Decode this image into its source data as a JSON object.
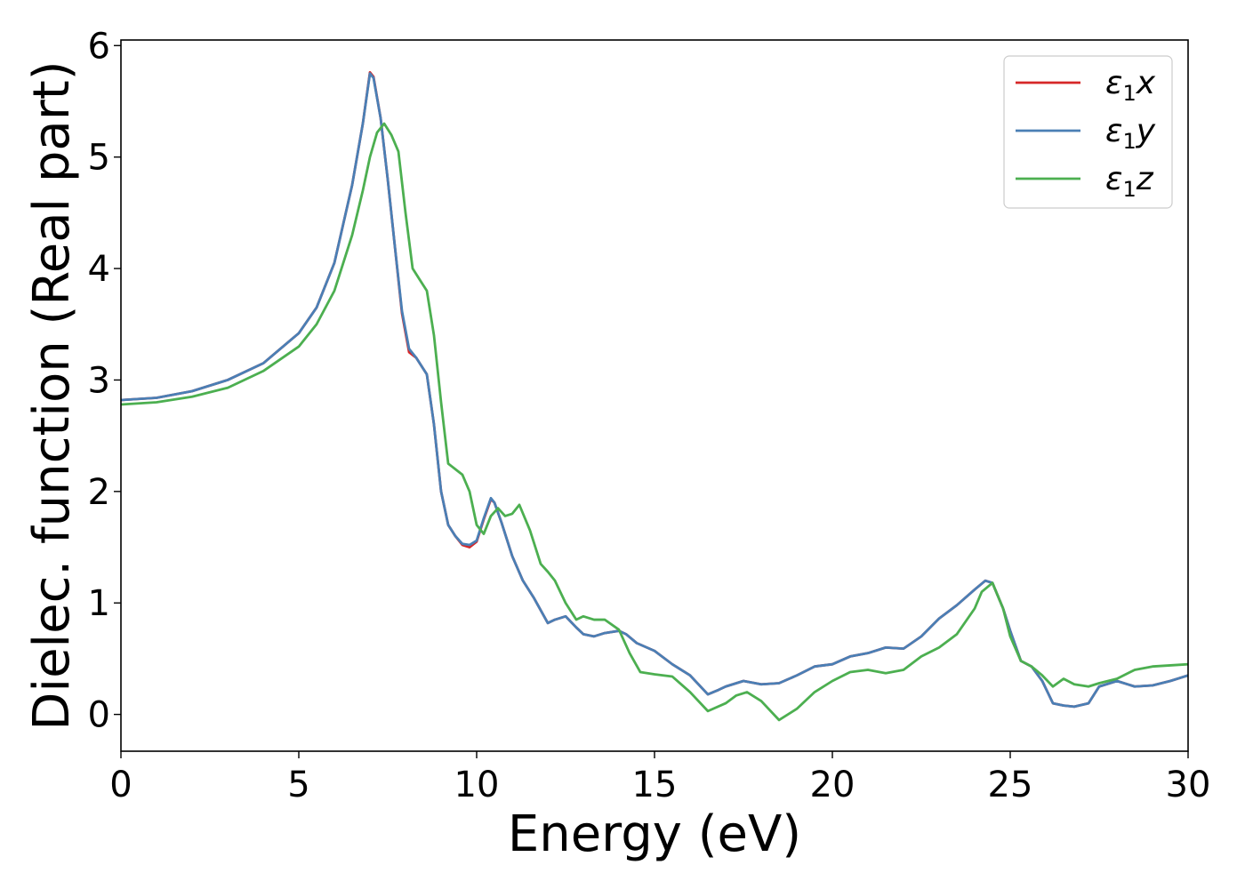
{
  "chart_data": {
    "type": "line",
    "title": "",
    "xlabel": "Energy (eV)",
    "ylabel": "Dielec. function (Real part)",
    "xlim": [
      0,
      30
    ],
    "ylim": [
      -0.33,
      6.05
    ],
    "xticks": [
      0,
      5,
      10,
      15,
      20,
      25,
      30
    ],
    "yticks": [
      0,
      1,
      2,
      3,
      4,
      5,
      6
    ],
    "grid": false,
    "legend_position": "top-right",
    "series": [
      {
        "name": "ε1x",
        "label_base": "ε",
        "label_sub": "1",
        "label_suffix": "x",
        "color": "#d62728",
        "x": [
          0,
          1,
          2,
          3,
          4,
          5,
          5.5,
          6,
          6.5,
          6.8,
          7.0,
          7.1,
          7.3,
          7.5,
          7.7,
          7.9,
          8.1,
          8.3,
          8.6,
          8.8,
          9.0,
          9.2,
          9.4,
          9.6,
          9.8,
          10.0,
          10.2,
          10.4,
          10.5,
          10.7,
          11.0,
          11.3,
          11.6,
          12.0,
          12.2,
          12.5,
          12.8,
          13.0,
          13.3,
          13.6,
          14.0,
          14.2,
          14.5,
          15.0,
          15.5,
          16.0,
          16.5,
          16.8,
          17.0,
          17.5,
          18.0,
          18.5,
          19.0,
          19.5,
          20.0,
          20.5,
          21.0,
          21.5,
          22.0,
          22.5,
          23.0,
          23.5,
          24.0,
          24.3,
          24.5,
          24.8,
          25.0,
          25.3,
          25.6,
          25.9,
          26.2,
          26.5,
          26.8,
          27.2,
          27.5,
          28.0,
          28.5,
          29.0,
          29.5,
          30.0
        ],
        "y": [
          2.82,
          2.84,
          2.9,
          3.0,
          3.15,
          3.42,
          3.65,
          4.05,
          4.75,
          5.3,
          5.76,
          5.72,
          5.35,
          4.8,
          4.2,
          3.6,
          3.25,
          3.2,
          3.05,
          2.6,
          2.0,
          1.7,
          1.6,
          1.52,
          1.5,
          1.55,
          1.75,
          1.93,
          1.9,
          1.72,
          1.42,
          1.2,
          1.05,
          0.82,
          0.85,
          0.88,
          0.78,
          0.72,
          0.7,
          0.73,
          0.75,
          0.72,
          0.64,
          0.57,
          0.45,
          0.35,
          0.18,
          0.22,
          0.25,
          0.3,
          0.27,
          0.28,
          0.35,
          0.43,
          0.45,
          0.52,
          0.55,
          0.6,
          0.59,
          0.7,
          0.86,
          0.98,
          1.12,
          1.2,
          1.18,
          0.95,
          0.75,
          0.48,
          0.43,
          0.3,
          0.1,
          0.08,
          0.07,
          0.1,
          0.25,
          0.3,
          0.25,
          0.26,
          0.3,
          0.35
        ]
      },
      {
        "name": "ε1y",
        "label_base": "ε",
        "label_sub": "1",
        "label_suffix": "y",
        "color": "#4a7fb5",
        "x": [
          0,
          1,
          2,
          3,
          4,
          5,
          5.5,
          6,
          6.5,
          6.8,
          7.0,
          7.1,
          7.3,
          7.5,
          7.7,
          7.9,
          8.1,
          8.3,
          8.6,
          8.8,
          9.0,
          9.2,
          9.4,
          9.6,
          9.8,
          10.0,
          10.2,
          10.4,
          10.5,
          10.7,
          11.0,
          11.3,
          11.6,
          12.0,
          12.2,
          12.5,
          12.8,
          13.0,
          13.3,
          13.6,
          14.0,
          14.2,
          14.5,
          15.0,
          15.5,
          16.0,
          16.5,
          16.8,
          17.0,
          17.5,
          18.0,
          18.5,
          19.0,
          19.5,
          20.0,
          20.5,
          21.0,
          21.5,
          22.0,
          22.5,
          23.0,
          23.5,
          24.0,
          24.3,
          24.5,
          24.8,
          25.0,
          25.3,
          25.6,
          25.9,
          26.2,
          26.5,
          26.8,
          27.2,
          27.5,
          28.0,
          28.5,
          29.0,
          29.5,
          30.0
        ],
        "y": [
          2.82,
          2.84,
          2.9,
          3.0,
          3.15,
          3.42,
          3.65,
          4.05,
          4.75,
          5.3,
          5.75,
          5.71,
          5.35,
          4.8,
          4.2,
          3.62,
          3.28,
          3.2,
          3.05,
          2.6,
          2.0,
          1.7,
          1.6,
          1.53,
          1.52,
          1.56,
          1.76,
          1.94,
          1.9,
          1.72,
          1.42,
          1.2,
          1.05,
          0.82,
          0.85,
          0.88,
          0.78,
          0.72,
          0.7,
          0.73,
          0.75,
          0.72,
          0.64,
          0.57,
          0.45,
          0.35,
          0.18,
          0.22,
          0.25,
          0.3,
          0.27,
          0.28,
          0.35,
          0.43,
          0.45,
          0.52,
          0.55,
          0.6,
          0.59,
          0.7,
          0.86,
          0.98,
          1.12,
          1.2,
          1.18,
          0.95,
          0.75,
          0.48,
          0.43,
          0.3,
          0.1,
          0.08,
          0.07,
          0.1,
          0.25,
          0.3,
          0.25,
          0.26,
          0.3,
          0.35
        ]
      },
      {
        "name": "ε1z",
        "label_base": "ε",
        "label_sub": "1",
        "label_suffix": "z",
        "color": "#4caf50",
        "x": [
          0,
          1,
          2,
          3,
          4,
          5,
          5.5,
          6,
          6.5,
          6.8,
          7.0,
          7.2,
          7.4,
          7.6,
          7.8,
          8.0,
          8.2,
          8.4,
          8.6,
          8.8,
          9.0,
          9.2,
          9.4,
          9.6,
          9.8,
          10.0,
          10.2,
          10.4,
          10.6,
          10.8,
          11.0,
          11.2,
          11.5,
          11.8,
          12.0,
          12.2,
          12.5,
          12.8,
          13.0,
          13.3,
          13.6,
          14.0,
          14.3,
          14.6,
          15.0,
          15.5,
          16.0,
          16.5,
          17.0,
          17.3,
          17.6,
          18.0,
          18.5,
          19.0,
          19.5,
          20.0,
          20.5,
          21.0,
          21.5,
          22.0,
          22.5,
          23.0,
          23.5,
          24.0,
          24.2,
          24.5,
          24.8,
          25.0,
          25.3,
          25.6,
          25.9,
          26.2,
          26.5,
          26.8,
          27.2,
          27.5,
          28.0,
          28.5,
          29.0,
          29.5,
          30.0
        ],
        "y": [
          2.78,
          2.8,
          2.85,
          2.93,
          3.08,
          3.3,
          3.5,
          3.8,
          4.3,
          4.7,
          5.0,
          5.22,
          5.3,
          5.2,
          5.05,
          4.5,
          4.0,
          3.9,
          3.8,
          3.4,
          2.8,
          2.25,
          2.2,
          2.15,
          2.0,
          1.7,
          1.62,
          1.78,
          1.85,
          1.78,
          1.8,
          1.88,
          1.65,
          1.35,
          1.28,
          1.2,
          1.0,
          0.85,
          0.88,
          0.85,
          0.85,
          0.76,
          0.55,
          0.38,
          0.36,
          0.34,
          0.2,
          0.03,
          0.1,
          0.17,
          0.2,
          0.12,
          -0.05,
          0.05,
          0.2,
          0.3,
          0.38,
          0.4,
          0.37,
          0.4,
          0.52,
          0.6,
          0.72,
          0.95,
          1.1,
          1.18,
          0.95,
          0.7,
          0.48,
          0.43,
          0.35,
          0.25,
          0.32,
          0.27,
          0.25,
          0.28,
          0.32,
          0.4,
          0.43,
          0.44,
          0.45
        ]
      }
    ]
  }
}
